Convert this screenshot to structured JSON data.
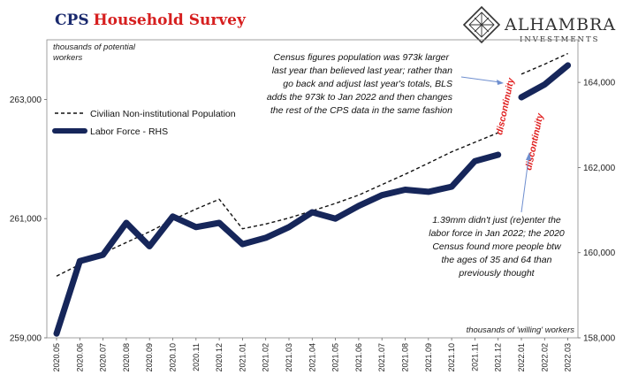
{
  "chart_data": {
    "type": "line",
    "title": "CPS Household Survey",
    "title_parts": [
      "CPS",
      "Household Survey"
    ],
    "title_colors": [
      "#1a2a6e",
      "#d61f1f"
    ],
    "left_unit": "thousands of potential workers",
    "left_unit_lines": [
      "thousands of potential",
      "workers"
    ],
    "right_unit": "thousands of 'willing' workers",
    "categories": [
      "2020.05",
      "2020.06",
      "2020.07",
      "2020.08",
      "2020.09",
      "2020.10",
      "2020.11",
      "2020.12",
      "2021.01",
      "2021.02",
      "2021.03",
      "2021.04",
      "2021.05",
      "2021.06",
      "2021.07",
      "2021.08",
      "2021.09",
      "2021.10",
      "2021.11",
      "2021.12",
      "2022.01",
      "2022.02",
      "2022.03"
    ],
    "left_axis": {
      "min": 259000,
      "max": 264000,
      "ticks": [
        259000,
        261000,
        263000
      ],
      "tick_labels": [
        "259,000",
        "261,000",
        "263,000"
      ]
    },
    "right_axis": {
      "min": 158000,
      "max": 165000,
      "ticks": [
        158000,
        160000,
        162000,
        164000
      ],
      "tick_labels": [
        "158,000",
        "160,000",
        "162,000",
        "164,000"
      ]
    },
    "series": [
      {
        "name": "Civilian Non-institutional Population",
        "axis": "left",
        "style": "dashed",
        "color": "#111111",
        "segments": [
          {
            "start": 0,
            "values": [
              260035,
              260230,
              260420,
              260600,
              260780,
              260980,
              261160,
              261325,
              260830,
              260910,
              261010,
              261130,
              261255,
              261395,
              261570,
              261745,
              261930,
              262120,
              262280,
              262440
            ]
          },
          {
            "start": 20,
            "values": [
              263425,
              263590,
              263770
            ]
          }
        ]
      },
      {
        "name": "Labor Force - RHS",
        "axis": "right",
        "style": "solid",
        "color": "#16265a",
        "segments": [
          {
            "start": 0,
            "values": [
              158100,
              159800,
              159950,
              160700,
              160150,
              160850,
              160600,
              160700,
              160200,
              160350,
              160600,
              160950,
              160800,
              161100,
              161350,
              161480,
              161430,
              161550,
              162150,
              162300
            ]
          },
          {
            "start": 20,
            "values": [
              163650,
              163950,
              164400
            ]
          }
        ]
      }
    ],
    "legend_placement": "top-left",
    "grid": false,
    "annotations": {
      "census_note": [
        "Census figures population  was 973k larger",
        "last year than  believed last year; rather than",
        "go back and adjust last year's totals, BLS",
        "adds the 973k to Jan 2022 and then changes",
        "the rest of the CPS data in the same fashion"
      ],
      "lf_note": [
        "1.39mm didn't just (re)enter the",
        "labor force in Jan 2022; the 2020",
        "Census found more people btw",
        "the ages of 35 and 64 than",
        "previously thought"
      ],
      "discontinuity_label": "discontinuity"
    }
  },
  "logo": {
    "name": "ALHAMBRA",
    "tagline": "INVESTMENTS"
  },
  "colors": {
    "title_navy": "#1a2a6e",
    "title_red": "#d61f1f",
    "labor_force_line": "#16265a",
    "annotation_arrow": "#6f8fcf",
    "discontinuity": "#e01f1f"
  }
}
